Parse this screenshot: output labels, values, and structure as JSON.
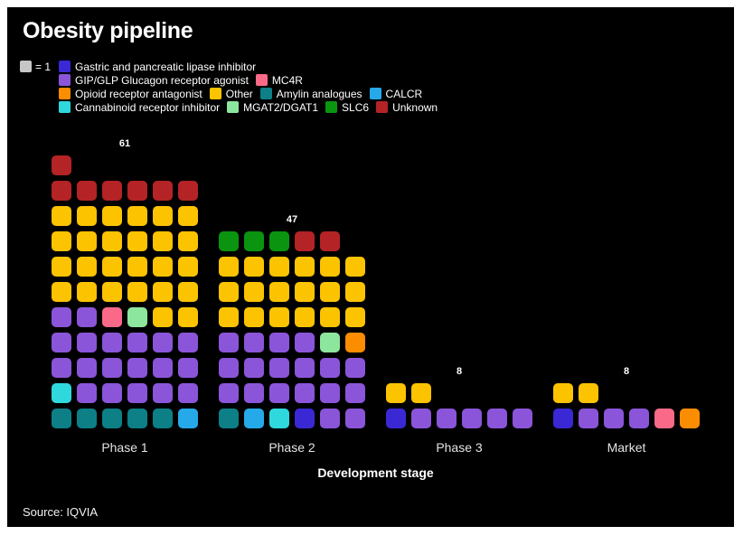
{
  "title": "Obesity pipeline",
  "xlabel": "Development stage",
  "source": "Source: IQVIA",
  "panel_background": "#000000",
  "page_background": "#ffffff",
  "colors": {
    "gastric": "#3a28d5",
    "gipglp": "#8a55d9",
    "mc4r": "#fa6a88",
    "opioid": "#fd8d00",
    "other": "#fcc300",
    "amylin": "#0c7f87",
    "calcr": "#26a9e8",
    "cannabinoid": "#2fd8dc",
    "mgat2": "#8de69e",
    "slc6": "#0a9410",
    "unknown": "#b42325",
    "unit": "#c6c6c6"
  },
  "categories": {
    "gastric": "Gastric and pancreatic lipase inhibitor",
    "gipglp": "GIP/GLP Glucagon receptor agonist",
    "mc4r": "MC4R",
    "opioid": "Opioid receptor antagonist",
    "other": "Other",
    "amylin": "Amylin analogues",
    "calcr": "CALCR",
    "cannabinoid": "Cannabinoid receptor inhibitor",
    "mgat2": "MGAT2/DGAT1",
    "slc6": "SLC6",
    "unknown": "Unknown"
  },
  "legend": {
    "unit_label": "= 1",
    "rows": [
      [
        "gastric"
      ],
      [
        "gipglp",
        "mc4r"
      ],
      [
        "opioid",
        "other",
        "amylin",
        "calcr"
      ],
      [
        "cannabinoid",
        "mgat2",
        "slc6",
        "unknown"
      ]
    ]
  },
  "chart_data": {
    "type": "waffle-pictogram",
    "unit_value": 1,
    "columns_per_group": 6,
    "categories": [
      "Phase 1",
      "Phase 2",
      "Phase 3",
      "Market"
    ],
    "totals": [
      61,
      47,
      8,
      8
    ],
    "legend_position": "top-left",
    "grid": "off",
    "groups": [
      {
        "stage": "Phase 1",
        "total": 61,
        "counts_by_category": {
          "unknown": 7,
          "other": 26,
          "gipglp": 19,
          "mc4r": 1,
          "mgat2": 1,
          "cannabinoid": 1,
          "amylin": 5,
          "calcr": 1
        },
        "rows_top_to_bottom": [
          [
            "unknown"
          ],
          [
            "unknown",
            "unknown",
            "unknown",
            "unknown",
            "unknown",
            "unknown"
          ],
          [
            "other",
            "other",
            "other",
            "other",
            "other",
            "other"
          ],
          [
            "other",
            "other",
            "other",
            "other",
            "other",
            "other"
          ],
          [
            "other",
            "other",
            "other",
            "other",
            "other",
            "other"
          ],
          [
            "other",
            "other",
            "other",
            "other",
            "other",
            "other"
          ],
          [
            "gipglp",
            "gipglp",
            "mc4r",
            "mgat2",
            "other",
            "other"
          ],
          [
            "gipglp",
            "gipglp",
            "gipglp",
            "gipglp",
            "gipglp",
            "gipglp"
          ],
          [
            "gipglp",
            "gipglp",
            "gipglp",
            "gipglp",
            "gipglp",
            "gipglp"
          ],
          [
            "cannabinoid",
            "gipglp",
            "gipglp",
            "gipglp",
            "gipglp",
            "gipglp"
          ],
          [
            "amylin",
            "amylin",
            "amylin",
            "amylin",
            "amylin",
            "calcr"
          ]
        ]
      },
      {
        "stage": "Phase 2",
        "total": 47,
        "counts_by_category": {
          "slc6": 3,
          "unknown": 2,
          "other": 18,
          "gipglp": 18,
          "mgat2": 1,
          "opioid": 1,
          "amylin": 1,
          "calcr": 1,
          "cannabinoid": 1,
          "gastric": 1
        },
        "rows_top_to_bottom": [
          [
            "slc6",
            "slc6",
            "slc6",
            "unknown",
            "unknown"
          ],
          [
            "other",
            "other",
            "other",
            "other",
            "other",
            "other"
          ],
          [
            "other",
            "other",
            "other",
            "other",
            "other",
            "other"
          ],
          [
            "other",
            "other",
            "other",
            "other",
            "other",
            "other"
          ],
          [
            "gipglp",
            "gipglp",
            "gipglp",
            "gipglp",
            "mgat2",
            "opioid"
          ],
          [
            "gipglp",
            "gipglp",
            "gipglp",
            "gipglp",
            "gipglp",
            "gipglp"
          ],
          [
            "gipglp",
            "gipglp",
            "gipglp",
            "gipglp",
            "gipglp",
            "gipglp"
          ],
          [
            "amylin",
            "calcr",
            "cannabinoid",
            "gastric",
            "gipglp",
            "gipglp"
          ]
        ]
      },
      {
        "stage": "Phase 3",
        "total": 8,
        "counts_by_category": {
          "other": 2,
          "gastric": 1,
          "gipglp": 5
        },
        "rows_top_to_bottom": [
          [
            "other",
            "other"
          ],
          [
            "gastric",
            "gipglp",
            "gipglp",
            "gipglp",
            "gipglp",
            "gipglp"
          ]
        ]
      },
      {
        "stage": "Market",
        "total": 8,
        "counts_by_category": {
          "other": 2,
          "gastric": 1,
          "gipglp": 3,
          "mc4r": 1,
          "opioid": 1
        },
        "rows_top_to_bottom": [
          [
            "other",
            "other"
          ],
          [
            "gastric",
            "gipglp",
            "gipglp",
            "gipglp",
            "mc4r",
            "opioid"
          ]
        ]
      }
    ]
  }
}
